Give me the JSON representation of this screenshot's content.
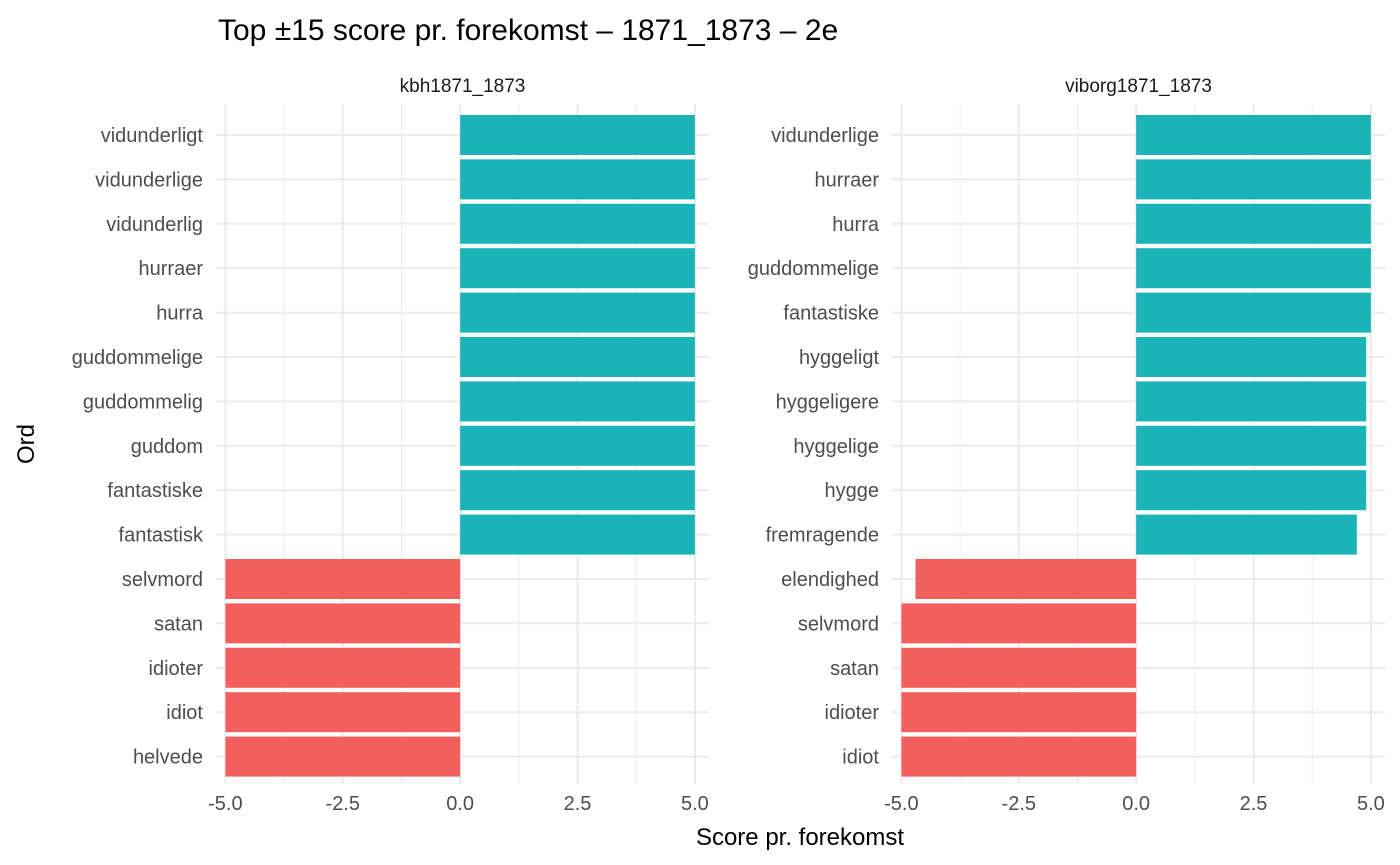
{
  "chart_data": {
    "type": "bar",
    "orientation": "horizontal",
    "title": "Top ±15 score pr. forekomst – 1871_1873 – 2e",
    "xlabel": "Score pr. forekomst",
    "ylabel": "Ord",
    "xlim": [
      -5.2,
      5.3
    ],
    "xticks": [
      -5.0,
      -2.5,
      0.0,
      2.5,
      5.0
    ],
    "xtick_labels": [
      "-5.0",
      "-2.5",
      "0.0",
      "2.5",
      "5.0"
    ],
    "grid": true,
    "legend": "none",
    "colors": {
      "positive": "#1ab3b8",
      "negative": "#f35f5c",
      "grid": "#ebebeb",
      "text": "#4d4d4d",
      "strong_text": "#000000"
    },
    "panels": [
      {
        "strip_label": "kbh1871_1873",
        "categories": [
          "vidunderligt",
          "vidunderlige",
          "vidunderlig",
          "hurraer",
          "hurra",
          "guddommelige",
          "guddommelig",
          "guddom",
          "fantastiske",
          "fantastisk",
          "selvmord",
          "satan",
          "idioter",
          "idiot",
          "helvede"
        ],
        "values": [
          5.0,
          5.0,
          5.0,
          5.0,
          5.0,
          5.0,
          5.0,
          5.0,
          5.0,
          5.0,
          -5.0,
          -5.0,
          -5.0,
          -5.0,
          -5.0
        ]
      },
      {
        "strip_label": "viborg1871_1873",
        "categories": [
          "vidunderlige",
          "hurraer",
          "hurra",
          "guddommelige",
          "fantastiske",
          "hyggeligt",
          "hyggeligere",
          "hyggelige",
          "hygge",
          "fremragende",
          "elendighed",
          "selvmord",
          "satan",
          "idioter",
          "idiot"
        ],
        "values": [
          5.0,
          5.0,
          5.0,
          5.0,
          5.0,
          4.9,
          4.9,
          4.9,
          4.9,
          4.7,
          -4.7,
          -5.0,
          -5.0,
          -5.0,
          -5.0
        ]
      }
    ]
  }
}
